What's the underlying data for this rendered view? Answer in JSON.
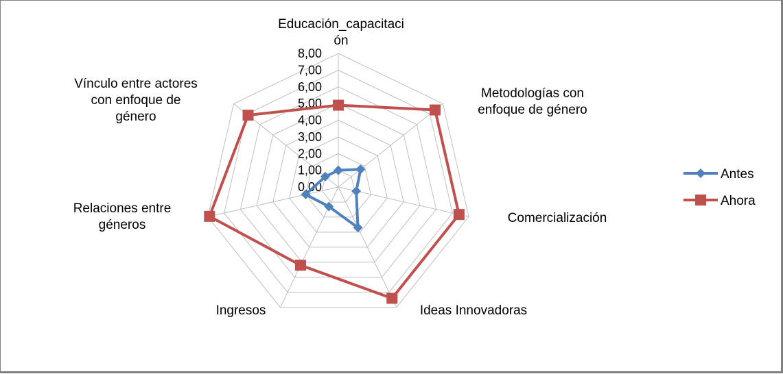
{
  "chart_data": {
    "type": "radar",
    "categories": [
      [
        "Educación_capacitaci",
        "ón"
      ],
      [
        "Metodologías con",
        "enfoque de género"
      ],
      [
        "Comercialización"
      ],
      [
        "Ideas Innovadoras"
      ],
      [
        "Ingresos"
      ],
      [
        "Relaciones entre",
        "géneros"
      ],
      [
        "Vínculo  entre actores",
        "con enfoque de",
        "género"
      ]
    ],
    "r_ticks": [
      "0,00",
      "1,00",
      "2,00",
      "3,00",
      "4,00",
      "5,00",
      "6,00",
      "7,00",
      "8,00"
    ],
    "rlim": [
      0,
      8
    ],
    "grid": true,
    "legend_position": "right",
    "series": [
      {
        "name": "Antes",
        "color": "#4f81bd",
        "marker": "diamond",
        "values": [
          1.0,
          1.7,
          1.1,
          2.7,
          1.3,
          2.0,
          1.0
        ]
      },
      {
        "name": "Ahora",
        "color": "#c0504d",
        "marker": "square",
        "values": [
          4.9,
          7.4,
          7.4,
          7.4,
          5.2,
          7.9,
          6.9
        ]
      }
    ]
  }
}
